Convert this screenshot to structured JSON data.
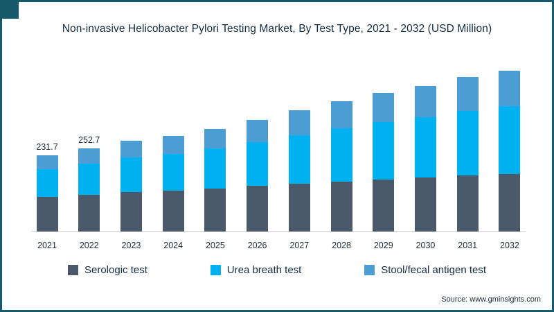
{
  "frame": {
    "accent_color": "#15596a"
  },
  "title": "Non-invasive Helicobacter Pylori Testing Market, By Test Type, 2021 - 2032 (USD Million)",
  "source": "Source: www.gminsights.com",
  "chart_data": {
    "type": "bar",
    "stacked": true,
    "title": "Non-invasive Helicobacter Pylori Testing Market, By Test Type, 2021 - 2032 (USD Million)",
    "units": "USD Million",
    "xlabel": "",
    "ylabel": "",
    "grid": false,
    "legend_position": "bottom",
    "categories": [
      "2021",
      "2022",
      "2023",
      "2024",
      "2025",
      "2026",
      "2027",
      "2028",
      "2029",
      "2030",
      "2031",
      "2032"
    ],
    "series": [
      {
        "name": "Serologic test",
        "color": "#4a5a6a",
        "values": [
          105.0,
          112.3,
          119.8,
          124.6,
          131.2,
          138.4,
          145.1,
          151.9,
          158.2,
          163.5,
          169.8,
          175.4
        ]
      },
      {
        "name": "Urea breath test",
        "color": "#00b1f1",
        "values": [
          85.0,
          93.7,
          104.6,
          111.9,
          121.8,
          134.2,
          148.6,
          162.8,
          174.9,
          184.7,
          196.9,
          205.8
        ]
      },
      {
        "name": "Stool/fecal antigen test",
        "color": "#4d9dd5",
        "values": [
          41.7,
          46.7,
          52.3,
          54.4,
          59.3,
          66.1,
          73.9,
          81.2,
          87.6,
          93.8,
          101.9,
          106.9
        ]
      }
    ],
    "totals": [
      231.7,
      252.7,
      276.7,
      290.9,
      312.3,
      338.7,
      367.6,
      395.9,
      420.7,
      442.0,
      468.6,
      488.1
    ],
    "value_labels": {
      "2021": "231.7",
      "2022": "252.7"
    },
    "ylim": [
      0,
      510
    ]
  }
}
